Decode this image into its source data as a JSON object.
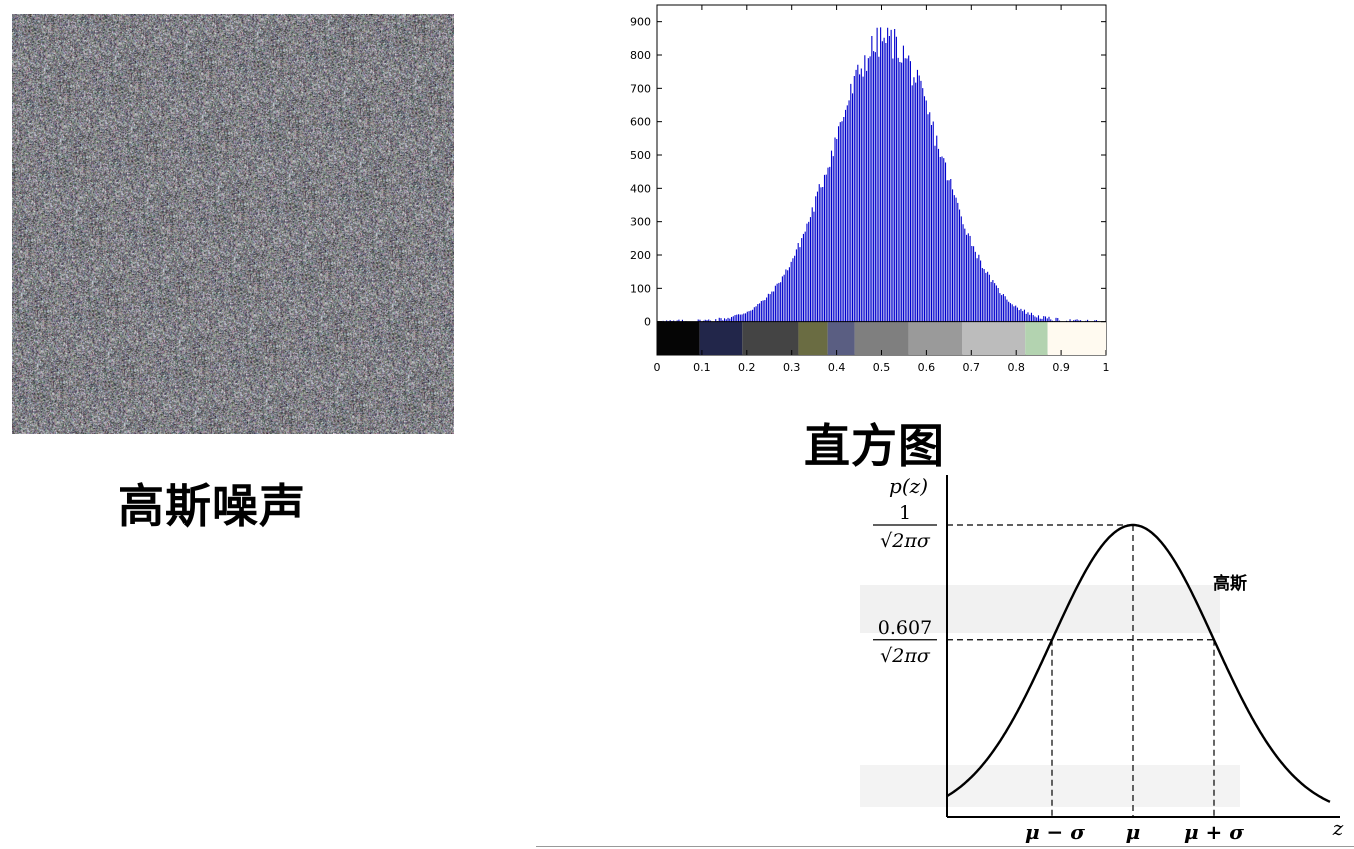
{
  "captions": {
    "noise": "高斯噪声",
    "histogram": "直方图"
  },
  "chart_data": [
    {
      "type": "bar",
      "title": "",
      "xlabel": "",
      "ylabel": "",
      "xlim": [
        0,
        1
      ],
      "ylim": [
        -100,
        950
      ],
      "x_ticks": [
        "0",
        "0.1",
        "0.2",
        "0.3",
        "0.4",
        "0.5",
        "0.6",
        "0.7",
        "0.8",
        "0.9",
        "1"
      ],
      "y_ticks": [
        "0",
        "100",
        "200",
        "300",
        "400",
        "500",
        "600",
        "700",
        "800",
        "900"
      ],
      "bar_color": "#0000cc",
      "peak": {
        "x": 0.51,
        "y": 845
      },
      "distribution": {
        "mean": 0.51,
        "std": 0.12
      },
      "colorbar": [
        "#050505",
        "#22264a",
        "#444444",
        "#6a6c42",
        "#5a5e82",
        "#7f7f7f",
        "#9a9a9a",
        "#bcbcbc",
        "#b3d3b0",
        "#fffaf0"
      ]
    },
    {
      "type": "line",
      "title": "",
      "ylabel": "p(z)",
      "xlabel": "z",
      "series_label": "高斯",
      "y_marks": [
        {
          "numerator": "1",
          "denominator": "√2πσ",
          "relative": 1.0
        },
        {
          "numerator": "0.607",
          "denominator": "√2πσ",
          "relative": 0.607
        }
      ],
      "x_marks": [
        "μ − σ",
        "μ",
        "μ + σ"
      ]
    }
  ]
}
